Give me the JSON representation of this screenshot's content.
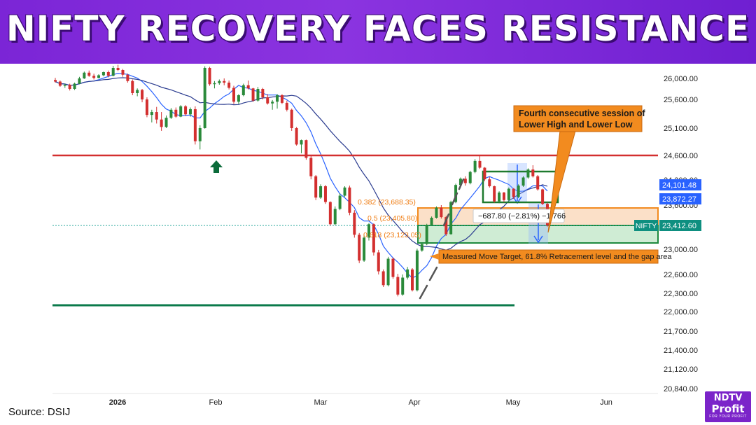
{
  "banner": {
    "title": "NIFTY RECOVERY FACES RESISTANCE",
    "color": "#7b25d6"
  },
  "source": "Source: DSIJ",
  "logo": {
    "line1": "NDTV",
    "line2": "Profit",
    "line3": "FOR YOUR PROFIT"
  },
  "chart_data": {
    "type": "candlestick",
    "symbol": "NIFTY",
    "x_ticks": [
      "2026",
      "Feb",
      "Mar",
      "Apr",
      "May",
      "Jun"
    ],
    "y_ticks": [
      20840,
      21120,
      21400,
      21700,
      22000,
      22300,
      22600,
      23000,
      23600,
      24200,
      24600,
      25100,
      25600,
      26000
    ],
    "ylim": [
      20840,
      26000
    ],
    "y_scale": "irregular, tick labels as printed",
    "price_labels": [
      {
        "value": 24101.48,
        "text": "24,101.48",
        "color": "#2962ff"
      },
      {
        "value": 23872.27,
        "text": "23,872.27",
        "color": "#2962ff"
      },
      {
        "value": 23412.6,
        "text": "23,412.60",
        "color": "#0e8f80",
        "name": "NIFTY"
      }
    ],
    "horizontal_levels": [
      {
        "value": 24600,
        "color": "#d32f2f"
      },
      {
        "value": 22050,
        "color": "#0b7a4b"
      }
    ],
    "fibonacci": [
      {
        "label": "0.382 (23,688.35)"
      },
      {
        "label": "0.5 (23,405.80)"
      },
      {
        "label": "0.618 (23,123.05)"
      }
    ],
    "measure_label": "−687.80 (−2.81%) −1,766",
    "annotations": [
      {
        "text": "Fourth consecutive session of Lower High and Lower Low",
        "color": "#f28b1f"
      },
      {
        "text": "Measured Move Target, 61.8% Retracement level and the gap area",
        "color": "#f28b1f"
      }
    ],
    "candles": [
      [
        25970,
        26010,
        25920,
        25940
      ],
      [
        25940,
        25960,
        25840,
        25860
      ],
      [
        25860,
        25900,
        25820,
        25880
      ],
      [
        25880,
        25900,
        25770,
        25800
      ],
      [
        25800,
        25920,
        25780,
        25900
      ],
      [
        25900,
        26030,
        25890,
        26000
      ],
      [
        26000,
        26130,
        25990,
        26110
      ],
      [
        26110,
        26150,
        26030,
        26050
      ],
      [
        26050,
        26090,
        25980,
        26010
      ],
      [
        26010,
        26080,
        26000,
        26060
      ],
      [
        26060,
        26130,
        26040,
        26120
      ],
      [
        26120,
        26150,
        26020,
        26050
      ],
      [
        26050,
        26240,
        26040,
        26200
      ],
      [
        26200,
        26260,
        26140,
        26160
      ],
      [
        26160,
        26180,
        26030,
        26070
      ],
      [
        26070,
        26090,
        25920,
        25950
      ],
      [
        25950,
        25980,
        25680,
        25720
      ],
      [
        25720,
        25810,
        25660,
        25780
      ],
      [
        25780,
        25800,
        25550,
        25600
      ],
      [
        25600,
        25640,
        25290,
        25330
      ],
      [
        25330,
        25420,
        25200,
        25380
      ],
      [
        25380,
        25470,
        25180,
        25250
      ],
      [
        25250,
        25380,
        25050,
        25120
      ],
      [
        25120,
        25320,
        25100,
        25280
      ],
      [
        25280,
        25450,
        25260,
        25420
      ],
      [
        25420,
        25460,
        25280,
        25300
      ],
      [
        25300,
        25500,
        25290,
        25480
      ],
      [
        25480,
        25500,
        25310,
        25340
      ],
      [
        25340,
        25460,
        25300,
        25430
      ],
      [
        25430,
        25480,
        24800,
        24860
      ],
      [
        24860,
        25150,
        24710,
        25100
      ],
      [
        25100,
        26230,
        25090,
        26200
      ],
      [
        26200,
        26220,
        25860,
        25890
      ],
      [
        25890,
        25950,
        25810,
        25910
      ],
      [
        25910,
        25980,
        25880,
        25950
      ],
      [
        25950,
        26000,
        25870,
        25920
      ],
      [
        25920,
        25960,
        25790,
        25820
      ],
      [
        25820,
        25860,
        25520,
        25560
      ],
      [
        25560,
        25700,
        25520,
        25680
      ],
      [
        25680,
        25900,
        25660,
        25870
      ],
      [
        25870,
        25960,
        25790,
        25810
      ],
      [
        25810,
        25820,
        25560,
        25580
      ],
      [
        25580,
        25840,
        25560,
        25800
      ],
      [
        25800,
        25820,
        25600,
        25640
      ],
      [
        25640,
        25700,
        25510,
        25530
      ],
      [
        25530,
        25590,
        25420,
        25560
      ],
      [
        25560,
        25700,
        25440,
        25680
      ],
      [
        25680,
        25700,
        25520,
        25540
      ],
      [
        25540,
        25580,
        25390,
        25420
      ],
      [
        25420,
        25440,
        25050,
        25100
      ],
      [
        25100,
        25120,
        24780,
        24800
      ],
      [
        24800,
        24890,
        24640,
        24880
      ],
      [
        24880,
        24890,
        24530,
        24560
      ],
      [
        24560,
        24600,
        24210,
        24260
      ],
      [
        24260,
        24280,
        23880,
        23920
      ],
      [
        23920,
        24130,
        23900,
        24100
      ],
      [
        24100,
        24120,
        23820,
        23850
      ],
      [
        23850,
        23860,
        23410,
        23440
      ],
      [
        23440,
        23780,
        23420,
        23740
      ],
      [
        23740,
        23990,
        23720,
        23950
      ],
      [
        23950,
        24100,
        23930,
        24080
      ],
      [
        24080,
        24110,
        23640,
        23680
      ],
      [
        23680,
        23720,
        23200,
        23250
      ],
      [
        23250,
        23280,
        22780,
        22820
      ],
      [
        22820,
        23250,
        22800,
        23200
      ],
      [
        23200,
        23470,
        23150,
        23440
      ],
      [
        23440,
        23460,
        22900,
        22950
      ],
      [
        22950,
        22990,
        22600,
        22650
      ],
      [
        22650,
        22680,
        22400,
        22430
      ],
      [
        22430,
        22880,
        22410,
        22850
      ],
      [
        22850,
        22870,
        22530,
        22560
      ],
      [
        22560,
        22610,
        22250,
        22280
      ],
      [
        22280,
        22600,
        22260,
        22550
      ],
      [
        22550,
        22720,
        22520,
        22680
      ],
      [
        22680,
        22700,
        22330,
        22350
      ],
      [
        22350,
        23010,
        22330,
        22980
      ],
      [
        22980,
        23110,
        22960,
        23090
      ],
      [
        23090,
        23450,
        23070,
        23420
      ],
      [
        23420,
        23620,
        23400,
        23600
      ],
      [
        23600,
        23780,
        23580,
        23760
      ],
      [
        23760,
        23800,
        23580,
        23610
      ],
      [
        23610,
        23630,
        23230,
        23260
      ],
      [
        23260,
        23870,
        23250,
        23850
      ],
      [
        23850,
        24140,
        23830,
        24120
      ],
      [
        24120,
        24240,
        24100,
        24220
      ],
      [
        24220,
        24260,
        24110,
        24150
      ],
      [
        24150,
        24350,
        24130,
        24330
      ],
      [
        24330,
        24540,
        24310,
        24510
      ],
      [
        24510,
        24600,
        24380,
        24400
      ],
      [
        24400,
        24410,
        24180,
        24210
      ],
      [
        24210,
        24250,
        24080,
        24100
      ],
      [
        24100,
        24110,
        23840,
        23860
      ],
      [
        23860,
        24020,
        23830,
        24000
      ],
      [
        24000,
        24010,
        23850,
        23880
      ],
      [
        23880,
        24080,
        23860,
        24060
      ],
      [
        24060,
        24070,
        23900,
        23930
      ],
      [
        23930,
        24130,
        23910,
        24110
      ],
      [
        24110,
        24260,
        24090,
        24240
      ],
      [
        24240,
        24390,
        24220,
        24370
      ],
      [
        24370,
        24440,
        24240,
        24260
      ],
      [
        24260,
        24280,
        24030,
        24050
      ],
      [
        24050,
        24060,
        23800,
        23820
      ],
      [
        23820,
        23840,
        23390,
        23412.6
      ]
    ]
  }
}
